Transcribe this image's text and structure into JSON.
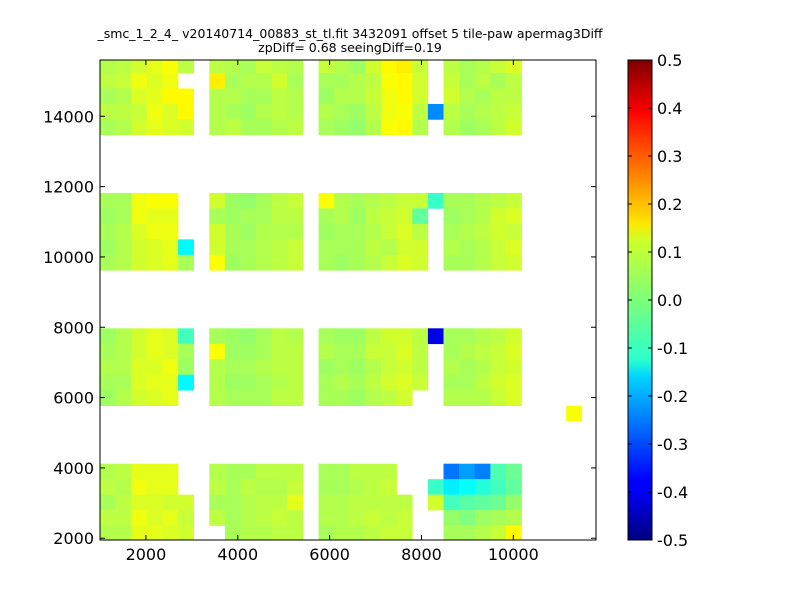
{
  "chart_data": {
    "type": "heatmap",
    "title": "_smc_1_2_4_ v20140714_00883_st_tl.fit 3432091 offset 5 tile-paw apermag3Diff",
    "subtitle": "zpDiff= 0.68 seeingDiff=0.19",
    "xlabel": "",
    "ylabel": "",
    "xlim": [
      1000,
      11800
    ],
    "ylim": [
      1950,
      15600
    ],
    "xticks": [
      2000,
      4000,
      6000,
      8000,
      10000
    ],
    "yticks": [
      2000,
      4000,
      6000,
      8000,
      10000,
      12000,
      14000
    ],
    "grid": false,
    "colormap": "jet",
    "colorbar": {
      "min": -0.5,
      "max": 0.5,
      "ticks": [
        0.5,
        0.4,
        0.3,
        0.2,
        0.1,
        0.0,
        -0.1,
        -0.2,
        -0.3,
        -0.4,
        -0.5
      ]
    },
    "cell_width": 340,
    "cell_height": 440,
    "row_bands": [
      {
        "y0": 13470,
        "rows": [
          [
            0.05,
            0.06,
            0.08,
            0.1,
            0.12,
            0.06,
            null,
            0.06,
            0.05,
            0.04,
            0.07,
            0.06,
            0.05,
            null,
            0.07,
            0.05,
            0.03,
            0.08,
            0.13,
            0.14,
            0.07,
            null,
            0.06,
            0.04,
            0.05,
            0.07,
            0.09
          ],
          [
            0.06,
            0.07,
            0.11,
            0.09,
            0.11,
            null,
            null,
            0.14,
            0.04,
            0.05,
            0.05,
            0.08,
            0.04,
            null,
            0.04,
            0.04,
            0.05,
            0.06,
            0.12,
            0.13,
            0.08,
            null,
            0.07,
            0.04,
            0.06,
            0.04,
            0.06
          ],
          [
            0.04,
            0.05,
            0.09,
            0.1,
            0.13,
            0.13,
            null,
            0.05,
            0.05,
            0.04,
            0.04,
            0.06,
            0.05,
            null,
            0.03,
            0.05,
            0.05,
            0.07,
            0.11,
            0.13,
            0.08,
            null,
            0.08,
            0.05,
            0.04,
            0.06,
            0.06
          ],
          [
            0.06,
            0.06,
            0.07,
            0.11,
            0.09,
            0.13,
            null,
            0.05,
            0.04,
            0.03,
            0.05,
            0.06,
            0.05,
            null,
            0.05,
            0.04,
            0.03,
            0.06,
            0.11,
            0.12,
            0.06,
            -0.24,
            0.06,
            0.04,
            0.05,
            0.06,
            0.07
          ],
          [
            0.04,
            0.05,
            0.08,
            0.1,
            0.09,
            0.08,
            null,
            0.05,
            0.06,
            0.04,
            0.04,
            0.05,
            0.06,
            null,
            0.04,
            0.03,
            0.02,
            0.05,
            0.12,
            0.13,
            0.05,
            null,
            0.05,
            0.03,
            0.04,
            0.06,
            0.08
          ]
        ]
      },
      {
        "y0": 9620,
        "rows": [
          [
            0.04,
            0.04,
            0.11,
            0.12,
            0.12,
            null,
            null,
            0.08,
            0.03,
            0.02,
            0.04,
            0.06,
            0.07,
            null,
            0.12,
            0.05,
            0.04,
            0.05,
            0.06,
            0.07,
            0.07,
            -0.07,
            0.04,
            0.04,
            0.05,
            0.06,
            0.07
          ],
          [
            0.03,
            0.04,
            0.11,
            0.1,
            0.1,
            null,
            null,
            0.04,
            0.03,
            0.04,
            0.04,
            0.06,
            0.06,
            null,
            0.04,
            0.05,
            0.03,
            0.06,
            0.07,
            0.08,
            -0.03,
            null,
            0.03,
            0.04,
            0.05,
            0.08,
            0.09
          ],
          [
            0.04,
            0.05,
            0.09,
            0.11,
            0.11,
            null,
            null,
            0.08,
            0.04,
            0.03,
            0.05,
            0.05,
            0.05,
            null,
            0.03,
            0.04,
            0.04,
            0.05,
            0.07,
            0.09,
            0.06,
            null,
            0.04,
            0.05,
            0.06,
            0.08,
            0.07
          ],
          [
            0.03,
            0.05,
            0.08,
            0.09,
            0.1,
            -0.13,
            null,
            0.08,
            0.04,
            0.04,
            0.05,
            0.06,
            0.07,
            null,
            0.04,
            0.04,
            0.04,
            0.06,
            0.05,
            0.08,
            0.08,
            null,
            0.05,
            0.04,
            0.05,
            0.07,
            0.09
          ],
          [
            0.04,
            0.05,
            0.08,
            0.09,
            0.1,
            0.04,
            null,
            0.12,
            0.03,
            0.04,
            0.05,
            0.06,
            0.07,
            null,
            0.04,
            0.03,
            0.04,
            0.05,
            0.07,
            0.09,
            0.08,
            null,
            0.04,
            0.04,
            0.05,
            0.07,
            0.08
          ]
        ]
      },
      {
        "y0": 5770,
        "rows": [
          [
            0.03,
            0.05,
            0.08,
            0.1,
            0.09,
            -0.06,
            null,
            0.04,
            0.03,
            0.02,
            0.04,
            0.06,
            0.05,
            null,
            0.04,
            0.03,
            0.03,
            0.06,
            0.08,
            0.08,
            0.06,
            -0.4,
            0.04,
            0.04,
            0.05,
            0.06,
            0.08
          ],
          [
            0.04,
            0.05,
            0.08,
            0.1,
            0.09,
            0.04,
            null,
            0.12,
            0.03,
            0.03,
            0.04,
            0.06,
            0.06,
            null,
            0.05,
            0.04,
            0.04,
            0.07,
            0.07,
            0.09,
            0.06,
            null,
            0.04,
            0.05,
            0.06,
            0.07,
            0.09
          ],
          [
            0.05,
            0.05,
            0.09,
            0.09,
            0.11,
            0.03,
            null,
            0.05,
            0.04,
            0.04,
            0.05,
            0.06,
            0.06,
            null,
            0.03,
            0.04,
            0.03,
            0.05,
            0.07,
            0.08,
            0.06,
            null,
            0.05,
            0.04,
            0.05,
            0.07,
            0.08
          ],
          [
            0.04,
            0.04,
            0.09,
            0.1,
            0.1,
            -0.13,
            null,
            0.05,
            0.03,
            0.03,
            0.04,
            0.05,
            0.06,
            null,
            0.04,
            0.05,
            0.04,
            0.06,
            0.08,
            0.09,
            0.07,
            null,
            0.04,
            0.04,
            0.06,
            0.08,
            0.09
          ],
          [
            0.03,
            0.05,
            0.08,
            0.09,
            0.1,
            null,
            null,
            0.05,
            0.04,
            0.04,
            0.04,
            0.06,
            0.06,
            null,
            0.04,
            0.04,
            0.03,
            0.05,
            0.06,
            0.08,
            null,
            null,
            0.05,
            0.05,
            0.05,
            0.07,
            0.09
          ]
        ]
      },
      {
        "y0": 1920,
        "rows": [
          [
            0.05,
            0.06,
            0.1,
            0.1,
            0.1,
            null,
            null,
            0.05,
            0.04,
            0.04,
            0.06,
            0.06,
            0.06,
            null,
            0.04,
            0.04,
            0.06,
            0.06,
            0.06,
            null,
            null,
            null,
            -0.26,
            -0.22,
            -0.25,
            -0.05,
            -0.02
          ],
          [
            0.06,
            0.05,
            0.11,
            0.1,
            0.1,
            null,
            null,
            0.06,
            0.04,
            0.06,
            0.05,
            0.05,
            0.07,
            null,
            0.04,
            0.04,
            0.05,
            0.06,
            0.07,
            null,
            null,
            -0.07,
            -0.14,
            -0.12,
            -0.09,
            -0.06,
            -0.03
          ],
          [
            0.04,
            0.06,
            0.09,
            0.09,
            0.08,
            0.08,
            null,
            0.04,
            0.04,
            0.05,
            0.06,
            0.06,
            0.1,
            null,
            0.05,
            0.05,
            0.06,
            0.06,
            0.06,
            0.06,
            null,
            0.08,
            -0.06,
            -0.04,
            -0.03,
            -0.02,
            0.02
          ],
          [
            0.06,
            0.06,
            0.11,
            0.09,
            0.1,
            0.07,
            null,
            0.06,
            0.04,
            0.05,
            0.06,
            0.07,
            0.06,
            null,
            0.05,
            0.05,
            0.06,
            0.07,
            0.06,
            0.07,
            null,
            null,
            0.02,
            0.0,
            0.03,
            0.04,
            0.05
          ],
          [
            0.05,
            0.05,
            0.1,
            0.1,
            0.09,
            0.08,
            null,
            null,
            0.04,
            0.05,
            0.05,
            0.06,
            0.06,
            null,
            0.04,
            0.05,
            0.05,
            0.06,
            0.07,
            0.07,
            null,
            null,
            0.04,
            0.04,
            0.05,
            0.07,
            0.13
          ]
        ]
      }
    ],
    "extra_cells": [
      {
        "x": 11150,
        "y": 5330,
        "value": 0.12
      }
    ]
  }
}
